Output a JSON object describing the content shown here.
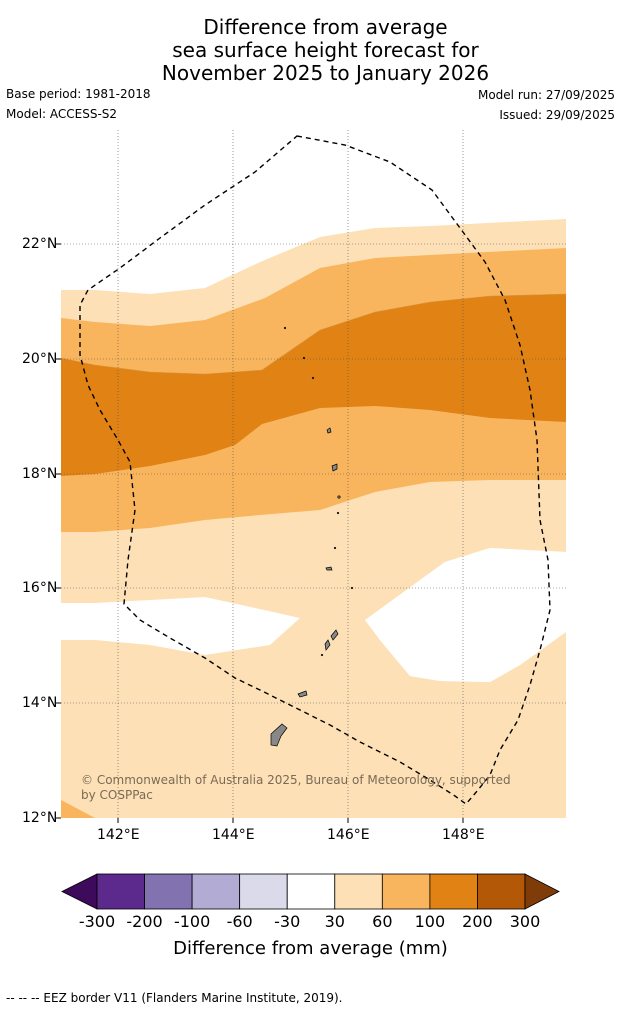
{
  "title": {
    "line1": "Difference from average",
    "line2": "sea surface height forecast for",
    "line3": "November 2025 to January 2026"
  },
  "meta": {
    "base_period": "Base period: 1981-2018",
    "model": "Model: ACCESS-S2",
    "model_run": "Model run: 27/09/2025",
    "issued": "Issued: 29/09/2025"
  },
  "map": {
    "lon_ticks": [
      "142°E",
      "144°E",
      "146°E",
      "148°E"
    ],
    "lat_ticks": [
      "22°N",
      "20°N",
      "18°N",
      "16°N",
      "14°N",
      "12°N"
    ],
    "copyright_line1": "© Commonwealth of Australia 2025, Bureau of Meteorology, supported",
    "copyright_line2": "by COSPPac"
  },
  "colorbar": {
    "label": "Difference from average (mm)",
    "ticks": [
      "-300",
      "-200",
      "-100",
      "-60",
      "-30",
      "30",
      "60",
      "100",
      "200",
      "300"
    ],
    "colors": [
      "#3d0a5c",
      "#5b2a8c",
      "#8372b0",
      "#b2abd3",
      "#dadaeb",
      "#ffffff",
      "#fde0b6",
      "#f9b55e",
      "#e08214",
      "#b35806",
      "#7f3b08"
    ]
  },
  "footer": "--  --  -- EEZ border V11 (Flanders Marine Institute, 2019)."
}
